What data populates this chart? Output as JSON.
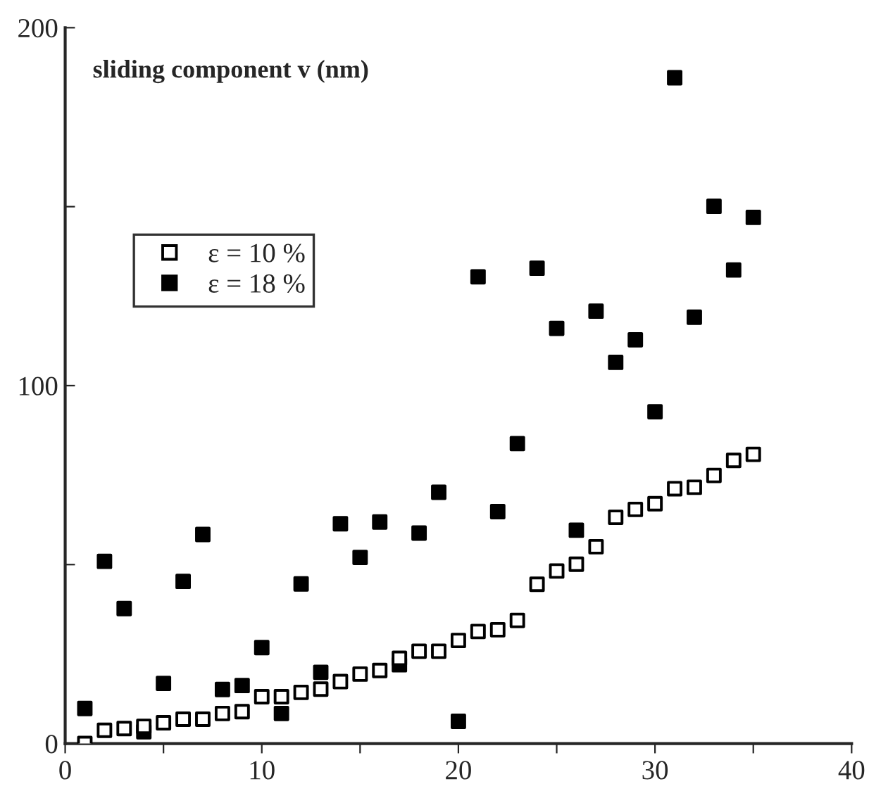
{
  "chart_data": {
    "type": "scatter",
    "title": "sliding component v (nm)",
    "x": [
      1,
      2,
      3,
      4,
      5,
      6,
      7,
      8,
      9,
      10,
      11,
      12,
      13,
      14,
      15,
      16,
      17,
      18,
      19,
      20,
      21,
      22,
      23,
      24,
      25,
      26,
      27,
      28,
      29,
      30,
      31,
      32,
      33,
      34,
      35
    ],
    "series": [
      {
        "name": "ε = 10 %",
        "color": "#000000",
        "marker": "square",
        "values": [
          0,
          3.7,
          4.2,
          4.8,
          5.8,
          6.8,
          6.8,
          8.4,
          8.9,
          13.1,
          13.1,
          14.3,
          15.2,
          17.3,
          19.4,
          20.4,
          23.8,
          25.8,
          25.8,
          28.8,
          31.3,
          31.8,
          34.4,
          44.5,
          48.2,
          50.1,
          55.0,
          63.2,
          65.4,
          67.0,
          71.2,
          71.6,
          74.9,
          79.1,
          80.8
        ]
      },
      {
        "name": "ε = 18 %",
        "color": "#000000",
        "marker": "square",
        "values": [
          9.8,
          50.9,
          37.7,
          3.3,
          16.8,
          45.3,
          58.4,
          15.1,
          16.2,
          26.8,
          8.4,
          44.6,
          19.9,
          61.4,
          52.0,
          61.9,
          22.0,
          58.8,
          70.2,
          6.2,
          130.4,
          64.8,
          83.8,
          132.8,
          116.0,
          59.6,
          120.8,
          106.5,
          112.8,
          92.7,
          186.0,
          119.1,
          150.1,
          132.3,
          147.0
        ]
      }
    ],
    "xlim": [
      0,
      40
    ],
    "ylim": [
      0,
      200
    ],
    "xticks": [
      0,
      {
        "value": 5,
        "label": null
      },
      10,
      {
        "value": 15,
        "label": null
      },
      20,
      {
        "value": 25,
        "label": null
      },
      30,
      {
        "value": 35,
        "label": null
      },
      40
    ],
    "yticks": [
      0,
      {
        "value": 50,
        "label": null
      },
      100,
      {
        "value": 150,
        "label": null
      },
      200
    ],
    "grid": false,
    "legend": "top left"
  }
}
